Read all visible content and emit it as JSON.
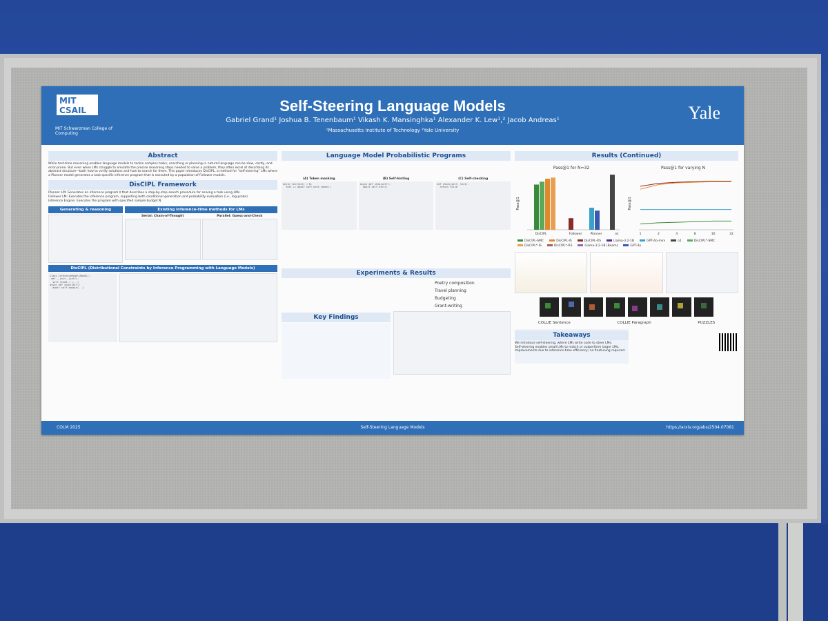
{
  "header": {
    "institution_logo": "MIT CSAIL",
    "college": "MIT Schwarzman College of Computing",
    "title": "Self-Steering Language Models",
    "authors": "Gabriel Grand¹   Joshua B. Tenenbaum¹   Vikash K. Mansinghka¹   Alexander K. Lew¹,²   Jacob Andreas¹",
    "affiliations": "¹Massachusetts Institute of Technology        ²Yale University",
    "yale": "Yale"
  },
  "sections": {
    "abstract": "Abstract",
    "disciple_framework": "DisCIPL Framework",
    "generating": "Generating & reasoning",
    "existing": "Existing inference-time methods for LMs",
    "serial": "Serial: Chain-of-Thought",
    "parallel": "Parallel: Guess-and-Check",
    "disciple_banner": "DisCIPL (Distributional Constraints by Inference Programming with Language Models)",
    "lmpp": "Language Model Probabilistic Programs",
    "token_masking": "(A) Token masking",
    "self_hinting": "(B) Self-hinting",
    "self_checking": "(C) Self-checking",
    "experiments": "Experiments & Results",
    "key_findings": "Key Findings",
    "results_continued": "Results (Continued)",
    "takeaways": "Takeaways"
  },
  "abstract_text": "While test-time reasoning enables language models to tackle complex tasks, searching or planning in natural language can be slow, costly, and error-prone. But even when LMs struggle to emulate the precise reasoning steps needed to solve a problem, they often excel at describing its abstract structure—both how to verify solutions and how to search for them. This paper introduces DisCIPL, a method for \"self-steering\" LMs where a Planner model generates a task-specific inference program that is executed by a population of Follower models.",
  "framework_items": [
    "Planner LM: Generates an inference program π that describes a step-by-step search procedure for solving a task using LMs.",
    "Follower LM: Executes the inference program, supporting both conditional generation and probability evaluation (i.e., log-probs).",
    "Inference Engine: Executes the program with specified sample budget N."
  ],
  "experiments": {
    "tasks": [
      "Poetry composition",
      "Travel planning",
      "Budgeting",
      "Grant-writing"
    ]
  },
  "results": {
    "chart1_title": "Pass@1 for N=32",
    "chart2_title": "Pass@1 for varying N",
    "legend": [
      "DisCIPL-SMC",
      "DisCIPL-IS",
      "DisCIPL-RS",
      "Llama-3.2-1B",
      "GPT-4o-mini",
      "o1",
      "DisCIPL*-SMC",
      "DisCIPL*-IS",
      "DisCIPL*-RS",
      "Llama-3.2-1B (Beam)",
      "GPT-4o"
    ],
    "bottom_labels": [
      "COLLIE Sentence",
      "COLLIE Paragraph",
      "PUZZLES"
    ]
  },
  "takeaways": [
    "We introduce self-steering, where LMs write code to steer LMs.",
    "Self-steering enables small LMs to match or outperform larger LMs.",
    "Improvements due to inference-time efficiency; no finetuning required."
  ],
  "footer": {
    "venue": "COLM 2025",
    "center": "Self-Steering Language Models",
    "url": "https://arxiv.org/abs/2504.07081"
  },
  "chart_data": [
    {
      "type": "bar",
      "title": "Pass@1 for N=32",
      "ylabel": "Pass@1",
      "ylim": [
        0,
        1
      ],
      "categories": [
        "DisCIPL",
        "Follower",
        "Planner",
        "o1"
      ],
      "series": [
        {
          "name": "DisCIPL-SMC",
          "values": [
            0.78,
            null,
            null,
            null
          ]
        },
        {
          "name": "DisCIPL*-SMC",
          "values": [
            0.83,
            null,
            null,
            null
          ]
        },
        {
          "name": "DisCIPL-IS",
          "values": [
            0.88,
            null,
            null,
            null
          ]
        },
        {
          "name": "DisCIPL*-IS",
          "values": [
            0.9,
            null,
            null,
            null
          ]
        },
        {
          "name": "Llama-3.2-1B",
          "values": [
            null,
            0.2,
            null,
            null
          ]
        },
        {
          "name": "GPT-4o-mini",
          "values": [
            null,
            null,
            0.38,
            null
          ]
        },
        {
          "name": "GPT-4o",
          "values": [
            null,
            null,
            0.33,
            null
          ]
        },
        {
          "name": "o1",
          "values": [
            null,
            null,
            null,
            0.95
          ]
        }
      ]
    },
    {
      "type": "line",
      "title": "Pass@1 for varying N",
      "ylabel": "Pass@1",
      "x": [
        1,
        2,
        4,
        8,
        16,
        32
      ],
      "series": [
        {
          "name": "DisCIPL-SMC",
          "values": [
            0.75,
            0.8,
            0.82,
            0.83,
            0.84,
            0.84
          ]
        },
        {
          "name": "DisCIPL-IS",
          "values": [
            0.7,
            0.78,
            0.81,
            0.82,
            0.83,
            0.83
          ]
        },
        {
          "name": "GPT-4o-mini",
          "values": [
            0.35,
            0.35,
            0.35,
            0.35,
            0.35,
            0.35
          ]
        },
        {
          "name": "Llama-3.2-1B",
          "values": [
            0.1,
            0.12,
            0.13,
            0.14,
            0.15,
            0.15
          ]
        }
      ]
    }
  ],
  "colors": {
    "poster_blue": "#2e6fb8",
    "wall_blue": "#24479a",
    "board_gray": "#b4b5b3"
  }
}
